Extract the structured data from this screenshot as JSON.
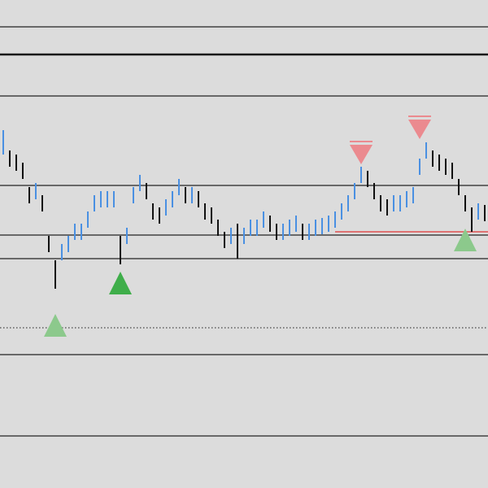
{
  "chart_data": {
    "type": "range-bar",
    "categories": [
      null,
      null,
      null,
      null,
      null,
      null,
      null,
      null,
      null,
      null,
      null,
      null,
      null,
      null,
      null,
      null,
      null,
      null,
      null,
      null,
      null,
      null,
      null,
      null,
      null,
      null,
      null,
      null,
      null,
      null,
      null,
      null,
      null,
      null,
      null,
      null,
      null,
      null,
      null,
      null,
      null,
      null,
      null,
      null,
      null,
      null,
      null,
      null,
      null,
      null,
      null,
      null,
      null,
      null,
      null,
      null,
      null,
      null,
      null,
      null,
      null,
      null,
      null,
      null,
      null,
      null,
      null,
      null,
      null,
      null,
      null,
      null,
      null,
      null,
      null
    ],
    "high": [
      440,
      415,
      410,
      400,
      370,
      375,
      360,
      310,
      280,
      300,
      310,
      325,
      325,
      340,
      360,
      365,
      365,
      365,
      310,
      320,
      370,
      385,
      375,
      350,
      345,
      355,
      365,
      380,
      370,
      370,
      365,
      350,
      345,
      330,
      315,
      320,
      325,
      320,
      330,
      330,
      340,
      335,
      325,
      325,
      330,
      335,
      325,
      325,
      330,
      332,
      335,
      340,
      350,
      360,
      375,
      395,
      390,
      375,
      360,
      355,
      360,
      360,
      365,
      370,
      405,
      425,
      415,
      410,
      405,
      400,
      380,
      360,
      345,
      350,
      348
    ],
    "low": [
      410,
      395,
      390,
      380,
      350,
      355,
      340,
      290,
      245,
      280,
      290,
      305,
      305,
      320,
      340,
      345,
      345,
      345,
      275,
      300,
      350,
      365,
      355,
      330,
      325,
      335,
      345,
      360,
      350,
      350,
      345,
      330,
      325,
      310,
      295,
      300,
      282,
      300,
      310,
      310,
      320,
      315,
      305,
      305,
      310,
      315,
      305,
      305,
      310,
      312,
      315,
      320,
      330,
      340,
      355,
      375,
      370,
      355,
      340,
      335,
      340,
      340,
      345,
      350,
      385,
      405,
      395,
      390,
      385,
      380,
      360,
      340,
      315,
      330,
      328
    ],
    "up_color": "#4a90e2",
    "down_color": "#111111",
    "ylim": [
      0,
      600
    ],
    "levels": [
      {
        "value": 567,
        "style": "solid",
        "color": "#222222"
      },
      {
        "value": 533,
        "style": "thick",
        "color": "#111111"
      },
      {
        "value": 482,
        "style": "solid",
        "color": "#222222"
      },
      {
        "value": 372,
        "style": "solid",
        "color": "#222222"
      },
      {
        "value": 311,
        "style": "solid",
        "color": "#222222"
      },
      {
        "value": 282,
        "style": "solid",
        "color": "#222222"
      },
      {
        "value": 197,
        "style": "dotted",
        "color": "#444444"
      },
      {
        "value": 164,
        "style": "solid",
        "color": "#222222"
      },
      {
        "value": 64,
        "style": "solid",
        "color": "#222222"
      }
    ],
    "segment": {
      "start_index": 51,
      "value": 315,
      "color": "#e05050"
    },
    "markers": [
      {
        "index": 8,
        "value": 200,
        "direction": "up",
        "color": "#8cc98c"
      },
      {
        "index": 18,
        "value": 252,
        "direction": "up",
        "color": "#3fae4a"
      },
      {
        "index": 71,
        "value": 305,
        "direction": "up",
        "color": "#8cc98c"
      },
      {
        "index": 55,
        "value": 412,
        "direction": "down",
        "color": "#eb8a8f"
      },
      {
        "index": 64,
        "value": 443,
        "direction": "down",
        "color": "#eb8a8f"
      }
    ]
  }
}
